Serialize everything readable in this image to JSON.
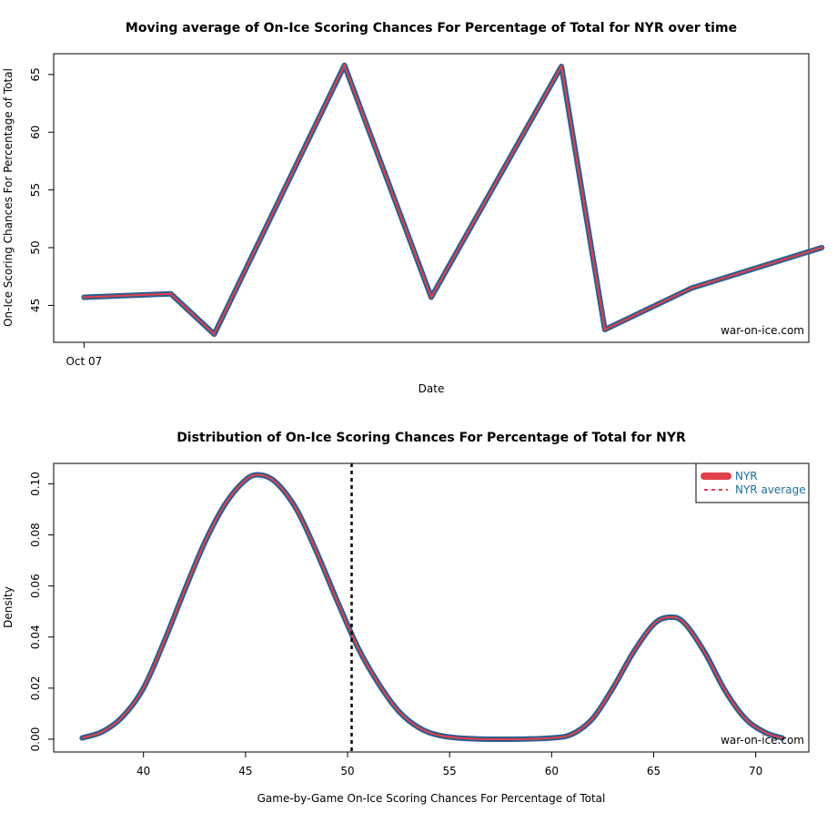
{
  "chart_data": [
    {
      "type": "line",
      "title": "Moving average of On-Ice Scoring Chances For Percentage of Total for NYR over time",
      "xlabel": "Date",
      "ylabel": "On-Ice Scoring Chances For Percentage of Total",
      "credit": "war-on-ice.com",
      "x_ticks": [
        {
          "index": 0,
          "label": "Oct 07"
        }
      ],
      "xlim": [
        -0.35,
        8.35
      ],
      "ylim": [
        41.8,
        66.8
      ],
      "y_ticks": [
        45,
        50,
        55,
        60,
        65
      ],
      "line_color_outer": "#2b5f8f",
      "line_color_inner": "#e0404a",
      "series": [
        {
          "values": [
            45.7,
            46.0,
            42.5,
            65.8,
            45.7,
            65.7,
            42.9,
            46.5,
            50.0
          ]
        }
      ],
      "x": [
        0,
        1.0,
        1.5,
        3.0,
        4.0,
        5.5,
        6.0,
        7.0,
        8.5
      ]
    },
    {
      "type": "area",
      "title": "Distribution of On-Ice Scoring Chances For Percentage of Total for NYR",
      "xlabel": "Game-by-Game On-Ice Scoring Chances For Percentage of Total",
      "ylabel": "Density",
      "credit": "war-on-ice.com",
      "xlim": [
        35.6,
        72.6
      ],
      "ylim": [
        -0.005,
        0.108
      ],
      "x_ticks": [
        40,
        45,
        50,
        55,
        60,
        65,
        70
      ],
      "y_ticks": [
        0.0,
        0.02,
        0.04,
        0.06,
        0.08,
        0.1
      ],
      "y_tick_labels": [
        "0.00",
        "0.02",
        "0.04",
        "0.06",
        "0.08",
        "0.10"
      ],
      "average": 50.2,
      "legend": [
        {
          "label": "NYR",
          "style": "solid",
          "color": "#e0404a"
        },
        {
          "label": "NYR average",
          "style": "dashed",
          "color": "#e0404a"
        }
      ],
      "legend_position": "top-right",
      "density_points": [
        [
          37.0,
          0.0005
        ],
        [
          38.0,
          0.003
        ],
        [
          39.0,
          0.009
        ],
        [
          40.0,
          0.02
        ],
        [
          41.0,
          0.038
        ],
        [
          42.0,
          0.058
        ],
        [
          43.0,
          0.077
        ],
        [
          44.0,
          0.092
        ],
        [
          45.0,
          0.1015
        ],
        [
          45.7,
          0.1035
        ],
        [
          46.5,
          0.1005
        ],
        [
          47.5,
          0.09
        ],
        [
          48.5,
          0.073
        ],
        [
          49.5,
          0.054
        ],
        [
          50.5,
          0.036
        ],
        [
          51.5,
          0.022
        ],
        [
          52.5,
          0.011
        ],
        [
          53.5,
          0.0045
        ],
        [
          54.5,
          0.0015
        ],
        [
          56.0,
          0.0002
        ],
        [
          58.0,
          0.0
        ],
        [
          60.0,
          0.0005
        ],
        [
          61.0,
          0.002
        ],
        [
          62.0,
          0.008
        ],
        [
          63.0,
          0.02
        ],
        [
          64.0,
          0.034
        ],
        [
          65.0,
          0.045
        ],
        [
          65.8,
          0.0478
        ],
        [
          66.5,
          0.0455
        ],
        [
          67.5,
          0.034
        ],
        [
          68.5,
          0.019
        ],
        [
          69.5,
          0.008
        ],
        [
          70.5,
          0.0025
        ],
        [
          71.3,
          0.0005
        ]
      ]
    }
  ]
}
